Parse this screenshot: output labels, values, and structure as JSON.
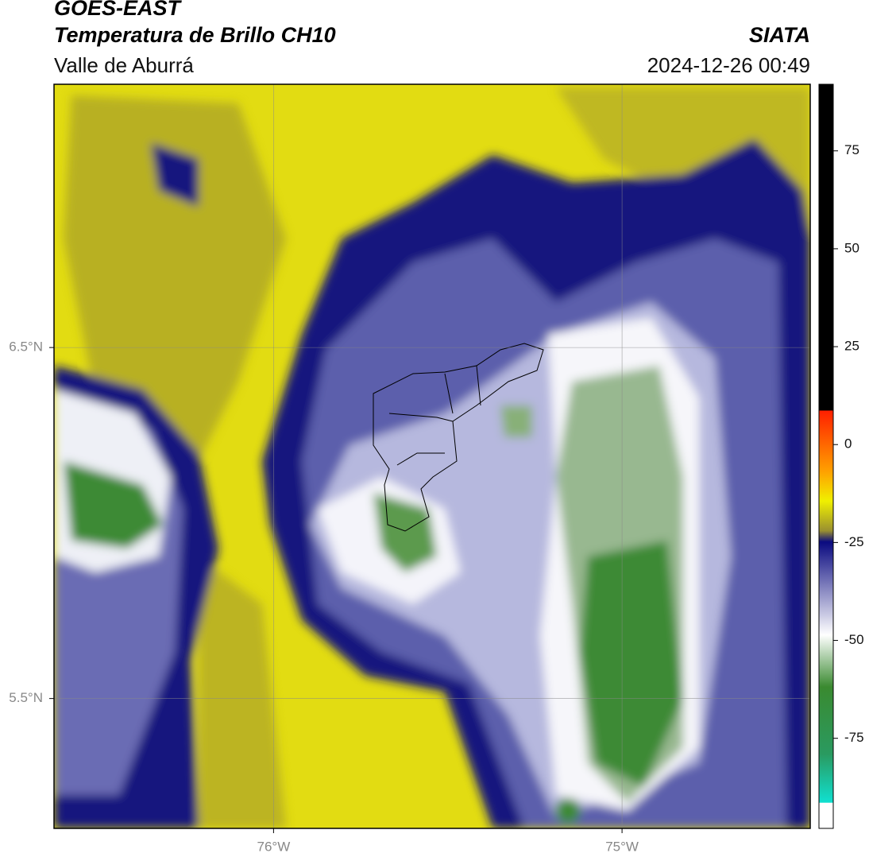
{
  "header": {
    "title": "GOES-EAST",
    "subtitle": "Temperatura de Brillo CH10",
    "region": "Valle de Aburrá",
    "source": "SIATA",
    "datetime": "2024-12-26 00:49"
  },
  "map": {
    "xlim": [
      -76.63,
      -74.46
    ],
    "ylim": [
      5.13,
      7.25
    ],
    "xticks": [
      {
        "value": -76,
        "label": "76°W"
      },
      {
        "value": -75,
        "label": "75°W"
      }
    ],
    "yticks": [
      {
        "value": 6.5,
        "label": "6.5°N"
      },
      {
        "value": 5.5,
        "label": "5.5°N"
      }
    ],
    "grid": true
  },
  "colorbar": {
    "lim": [
      -98,
      92
    ],
    "ticks": [
      75,
      50,
      25,
      0,
      -25,
      -50,
      -75
    ]
  }
}
